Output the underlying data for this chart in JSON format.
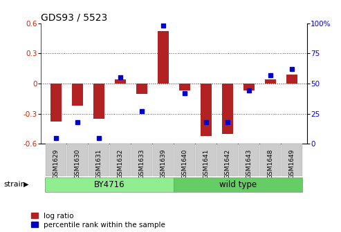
{
  "title": "GDS93 / 5523",
  "samples": [
    "GSM1629",
    "GSM1630",
    "GSM1631",
    "GSM1632",
    "GSM1633",
    "GSM1639",
    "GSM1640",
    "GSM1641",
    "GSM1642",
    "GSM1643",
    "GSM1648",
    "GSM1649"
  ],
  "log_ratio": [
    -0.38,
    -0.22,
    -0.35,
    0.04,
    -0.1,
    0.52,
    -0.07,
    -0.52,
    -0.5,
    -0.07,
    0.04,
    0.09
  ],
  "percentile_rank": [
    5,
    18,
    5,
    55,
    27,
    98,
    42,
    18,
    18,
    44,
    57,
    62
  ],
  "bar_color": "#b22222",
  "dot_color": "#0000cc",
  "ylim_left": [
    -0.6,
    0.6
  ],
  "ylim_right": [
    0,
    100
  ],
  "yticks_left": [
    -0.6,
    -0.3,
    0.0,
    0.3,
    0.6
  ],
  "yticks_right": [
    0,
    25,
    50,
    75,
    100
  ],
  "ytick_labels_left": [
    "-0.6",
    "-0.3",
    "0",
    "0.3",
    "0.6"
  ],
  "ytick_labels_right": [
    "0",
    "25",
    "50",
    "75",
    "100%"
  ],
  "zero_line_color": "#cc0000",
  "grid_color": "#555555",
  "strain_groups": [
    {
      "label": "BY4716",
      "start": 0,
      "end": 5,
      "color": "#90ee90"
    },
    {
      "label": "wild type",
      "start": 6,
      "end": 11,
      "color": "#66cc66"
    }
  ],
  "strain_label": "strain",
  "legend_bar_label": "log ratio",
  "legend_dot_label": "percentile rank within the sample",
  "tick_label_color_left": "#cc2200",
  "tick_label_color_right": "#0000cc",
  "bar_width": 0.5,
  "bg_color": "#ffffff",
  "plot_bg_color": "#ffffff",
  "tick_bg_color": "#cccccc"
}
